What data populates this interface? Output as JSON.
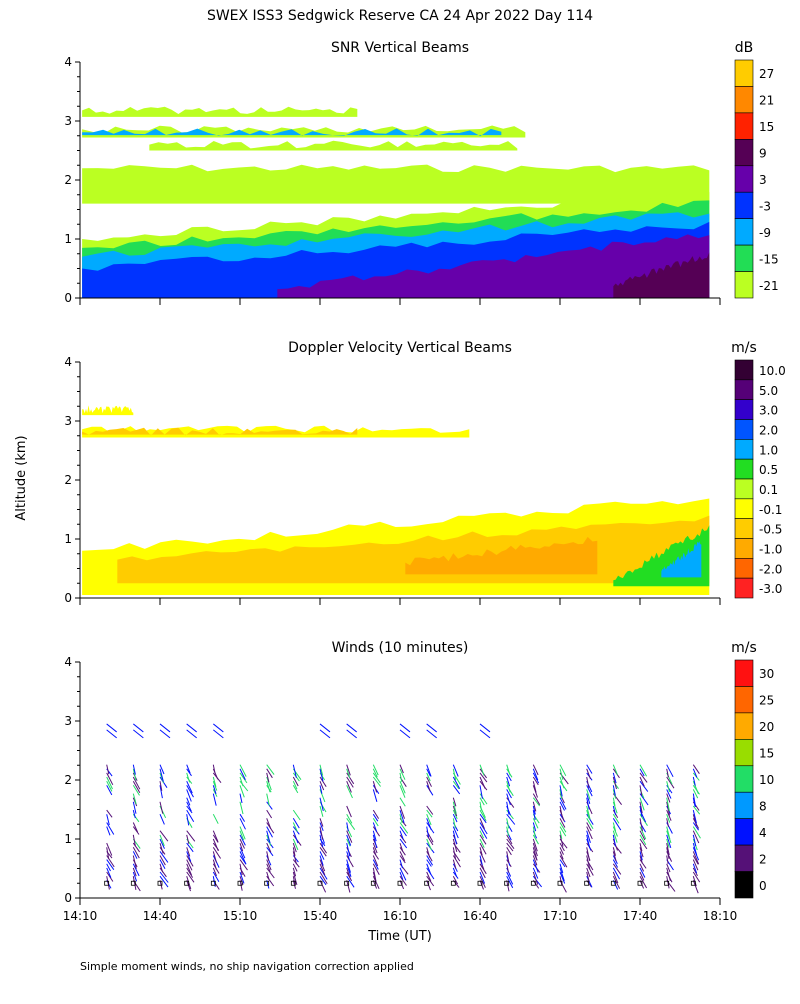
{
  "page_title": "SWEX ISS3 Sedgwick Reserve CA  24 Apr 2022 Day 114",
  "shared_ylabel": "Altitude (km)",
  "xlabel": "Time (UT)",
  "footnote": "Simple moment winds, no ship navigation correction applied",
  "chart_data": [
    {
      "type": "heatmap",
      "title": "SNR Vertical Beams",
      "units": "dB",
      "x_range_hours": [
        14.1667,
        18.1667
      ],
      "ylim": [
        0,
        4
      ],
      "y_ticks": [
        "0",
        "1",
        "2",
        "3",
        "4"
      ],
      "colorbar_labels": [
        "27",
        "21",
        "15",
        "9",
        "3",
        "-3",
        "-9",
        "-15",
        "-21"
      ],
      "colors": [
        "#ffcc00",
        "#ff8800",
        "#ff2200",
        "#550055",
        "#6600aa",
        "#0033ff",
        "#00aaff",
        "#22dd55",
        "#bbff22"
      ],
      "layers": [
        {
          "name": "noise top",
          "color": "#bbff22",
          "x0": 14.18,
          "x1": 18.1,
          "y0": 1.6,
          "y1": 2.2
        },
        {
          "name": "band 3.1",
          "color": "#bbff22",
          "x0": 14.18,
          "x1": 15.9,
          "y0": 3.07,
          "y1": 3.18
        },
        {
          "name": "band 2.8",
          "color": "#bbff22",
          "x0": 14.18,
          "x1": 16.95,
          "y0": 2.72,
          "y1": 2.86
        },
        {
          "name": "band 2.8 core",
          "color": "#00aaff",
          "x0": 14.18,
          "x1": 16.8,
          "y0": 2.76,
          "y1": 2.81
        },
        {
          "name": "band 2.55",
          "color": "#bbff22",
          "x0": 14.6,
          "x1": 16.9,
          "y0": 2.5,
          "y1": 2.6
        },
        {
          "name": "boundary layer outer",
          "color": "#bbff22",
          "x0": 14.18,
          "x1": 18.1,
          "y0": 0,
          "y1": 1.0,
          "rise_to": 1.8
        },
        {
          "name": "boundary layer 2",
          "color": "#22dd55",
          "x0": 14.18,
          "x1": 18.1,
          "y0": 0,
          "y1": 0.85,
          "rise_to": 1.6
        },
        {
          "name": "boundary layer 3",
          "color": "#00aaff",
          "x0": 14.18,
          "x1": 18.1,
          "y0": 0,
          "y1": 0.7,
          "rise_to": 1.45
        },
        {
          "name": "boundary layer 4",
          "color": "#0033ff",
          "x0": 14.18,
          "x1": 18.1,
          "y0": 0,
          "y1": 0.5,
          "rise_to": 1.25
        },
        {
          "name": "boundary layer 5",
          "color": "#6600aa",
          "x0": 15.4,
          "x1": 18.1,
          "y0": 0,
          "y1": 0.15,
          "rise_to": 1.1
        },
        {
          "name": "boundary layer core",
          "color": "#550055",
          "x0": 17.5,
          "x1": 18.1,
          "y0": 0,
          "y1": 0.2,
          "rise_to": 0.75
        }
      ]
    },
    {
      "type": "heatmap",
      "title": "Doppler Velocity Vertical Beams",
      "units": "m/s",
      "x_range_hours": [
        14.1667,
        18.1667
      ],
      "ylim": [
        0,
        4
      ],
      "y_ticks": [
        "0",
        "1",
        "2",
        "3",
        "4"
      ],
      "colorbar_labels": [
        "10.0",
        "5.0",
        "3.0",
        "2.0",
        "1.0",
        "0.5",
        "0.1",
        "-0.1",
        "-0.5",
        "-1.0",
        "-2.0",
        "-3.0"
      ],
      "colors": [
        "#330033",
        "#550077",
        "#3300cc",
        "#0055ff",
        "#00aaff",
        "#22dd22",
        "#bbff22",
        "#ffff00",
        "#ffcc00",
        "#ffaa00",
        "#ff6600",
        "#ff2222"
      ],
      "layers": [
        {
          "name": "band 3.15",
          "color": "#ffff00",
          "x0": 14.18,
          "x1": 14.5,
          "y0": 3.1,
          "y1": 3.2
        },
        {
          "name": "band 2.8",
          "color": "#ffff00",
          "x0": 14.18,
          "x1": 16.6,
          "y0": 2.72,
          "y1": 2.86
        },
        {
          "name": "band 2.8 core",
          "color": "#ffcc00",
          "x0": 14.18,
          "x1": 15.9,
          "y0": 2.77,
          "y1": 2.82
        },
        {
          "name": "boundary layer",
          "color": "#ffff00",
          "x0": 14.18,
          "x1": 18.1,
          "y0": 0.05,
          "y1": 0.8,
          "rise_to": 1.7
        },
        {
          "name": "boundary layer sink",
          "color": "#ffcc00",
          "x0": 14.4,
          "x1": 18.1,
          "y0": 0.25,
          "y1": 0.65,
          "rise_to": 1.35
        },
        {
          "name": "boundary layer strong sink",
          "color": "#ffaa00",
          "x0": 16.2,
          "x1": 17.4,
          "y0": 0.4,
          "y1": 0.6,
          "rise_to": 1.0
        },
        {
          "name": "rising air",
          "color": "#22dd22",
          "x0": 17.5,
          "x1": 18.1,
          "y0": 0.2,
          "y1": 0.3,
          "rise_to": 1.2
        },
        {
          "name": "rising air core",
          "color": "#00aaff",
          "x0": 17.8,
          "x1": 18.05,
          "y0": 0.35,
          "y1": 0.45,
          "rise_to": 0.95
        }
      ]
    },
    {
      "type": "scatter",
      "title": "Winds (10 minutes)",
      "units": "m/s",
      "x_range_hours": [
        14.1667,
        18.1667
      ],
      "ylim": [
        0,
        4
      ],
      "y_ticks": [
        "0",
        "1",
        "2",
        "3",
        "4"
      ],
      "x_ticks": [
        "14:10",
        "14:40",
        "15:10",
        "15:40",
        "16:10",
        "16:40",
        "17:10",
        "17:40",
        "18:10"
      ],
      "colorbar_labels": [
        "30",
        "25",
        "20",
        "15",
        "10",
        "8",
        "4",
        "2",
        "0"
      ],
      "colors": [
        "#ff1111",
        "#ff6600",
        "#ffaa00",
        "#99dd00",
        "#22dd66",
        "#0099ff",
        "#0011ff",
        "#551177",
        "#000000"
      ],
      "profile_times": [
        "14:20",
        "14:30",
        "14:40",
        "14:50",
        "15:00",
        "15:10",
        "15:20",
        "15:30",
        "15:40",
        "15:50",
        "16:00",
        "16:10",
        "16:20",
        "16:30",
        "16:40",
        "16:50",
        "17:00",
        "17:10",
        "17:20",
        "17:30",
        "17:40",
        "17:50",
        "18:00"
      ],
      "upper_level_times": [
        "14:20",
        "14:30",
        "14:40",
        "14:50",
        "15:00",
        "15:40",
        "15:50",
        "16:10",
        "16:20",
        "16:40"
      ]
    }
  ]
}
